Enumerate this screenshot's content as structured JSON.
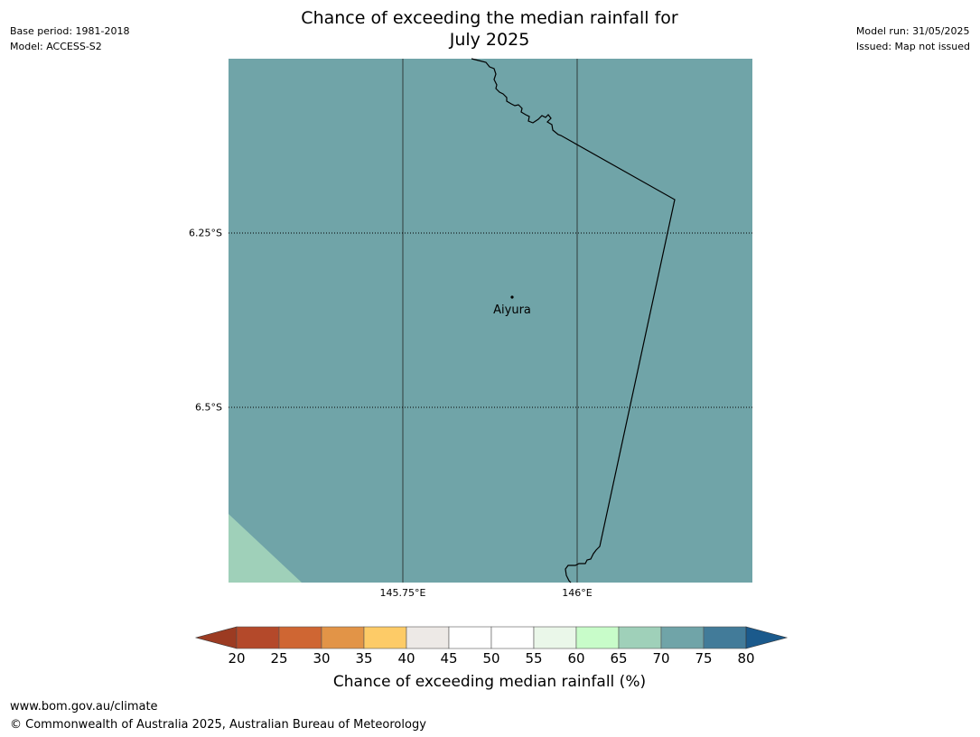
{
  "header": {
    "title_line1": "Chance of exceeding the median rainfall for",
    "title_line2": "July 2025",
    "base_period": "Base period: 1981-2018",
    "model": "Model: ACCESS-S2",
    "model_run": "Model run: 31/05/2025",
    "issued": "Issued: Map not issued"
  },
  "map": {
    "latitude_labels": [
      "6.25°S",
      "6.5°S"
    ],
    "longitude_labels": [
      "145.75°E",
      "146°E"
    ],
    "places": [
      {
        "name": "Aiyura"
      }
    ],
    "regions": [
      {
        "category": "70-75",
        "color": "#70a4a8"
      },
      {
        "category": "65-70",
        "color": "#9fd0b9"
      }
    ]
  },
  "colorbar": {
    "label": "Chance of exceeding median rainfall (%)",
    "ticks": [
      "20",
      "25",
      "30",
      "35",
      "40",
      "45",
      "50",
      "55",
      "60",
      "65",
      "70",
      "75",
      "80"
    ],
    "under_color": "#9c3b22",
    "over_color": "#1b5a8c",
    "colors": [
      "#b4492a",
      "#cf6633",
      "#e29447",
      "#fdcb67",
      "#ede9e6",
      "#ffffff",
      "#ffffff",
      "#eaf7e9",
      "#c8fcc9",
      "#9fd0b9",
      "#70a4a8",
      "#427b99"
    ]
  },
  "footer": {
    "url": "www.bom.gov.au/climate",
    "copyright": "© Commonwealth of Australia 2025, Australian Bureau of Meteorology"
  }
}
